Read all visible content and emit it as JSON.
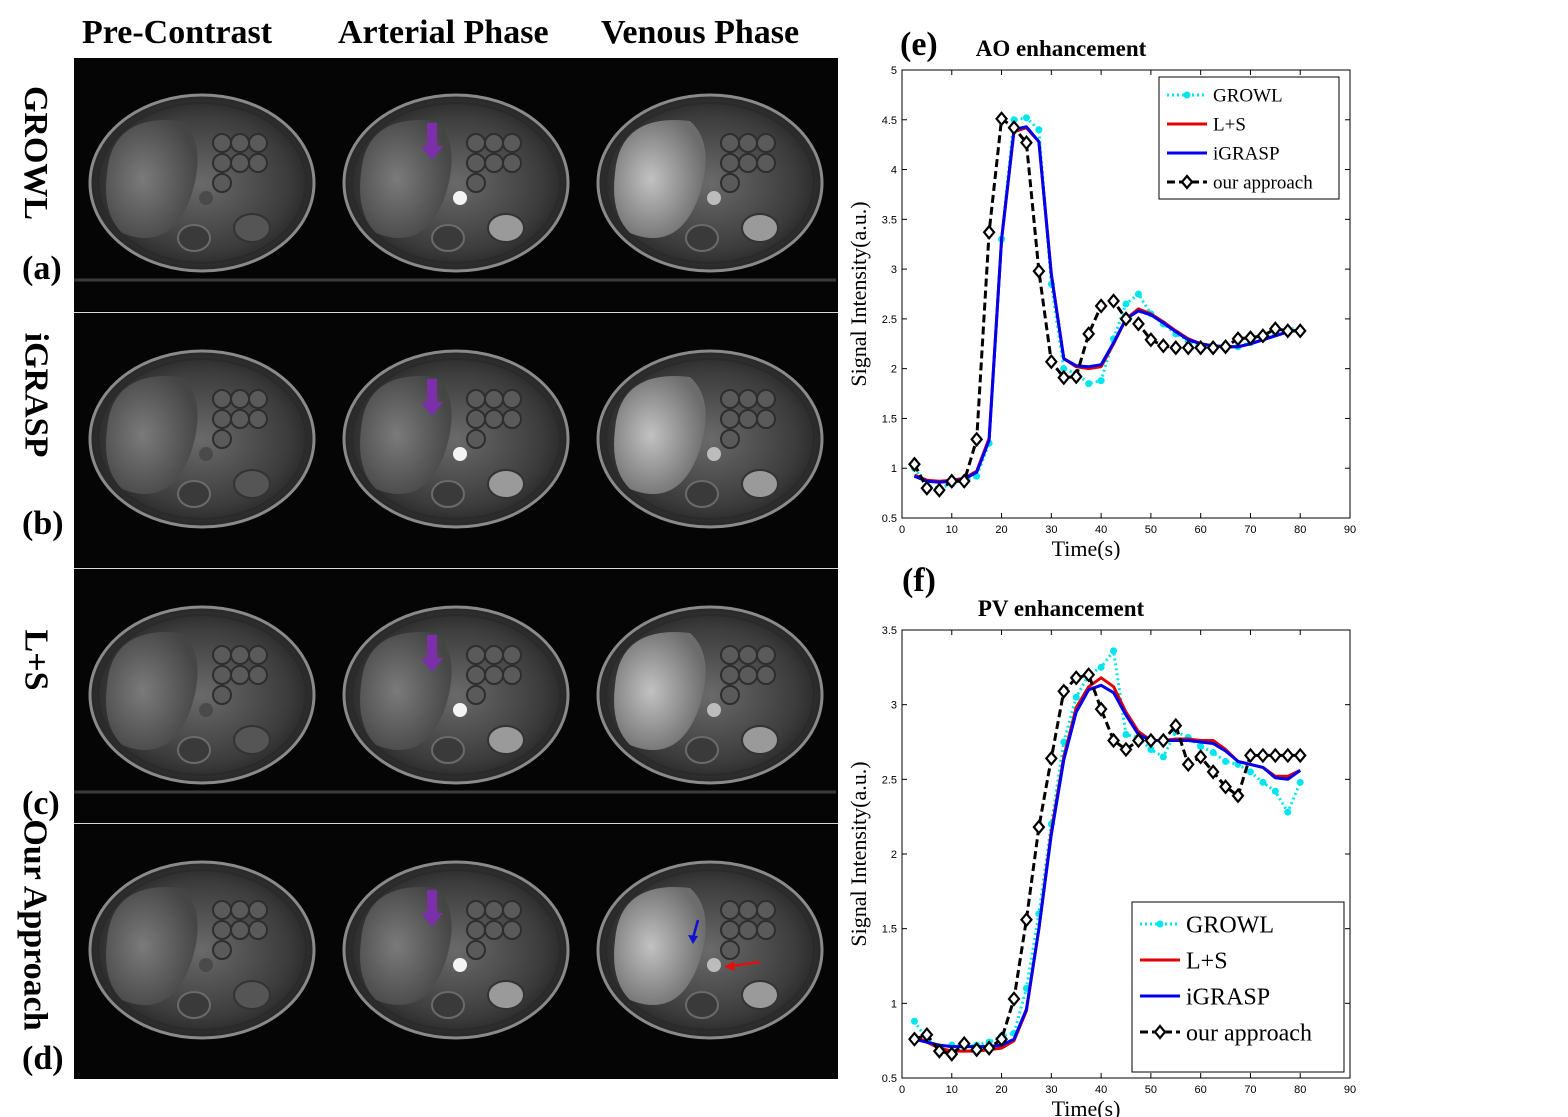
{
  "columns": [
    "Pre-Contrast",
    "Arterial Phase",
    "Venous Phase"
  ],
  "rows": [
    {
      "method": "GROWL",
      "letter": "(a)"
    },
    {
      "method": "iGRASP",
      "letter": "(b)"
    },
    {
      "method": "L+S",
      "letter": "(c)"
    },
    {
      "method": "Our Approach",
      "letter": "(d)"
    }
  ],
  "colors": {
    "growl": "#00e5ee",
    "ls": "#e00000",
    "igrasp": "#0000ee",
    "ours": "#000000",
    "arrow_purple": "#7b2fa8",
    "arrow_blue": "#1010d0",
    "arrow_red": "#e01010"
  },
  "chart_data": [
    {
      "panel_letter": "(e)",
      "type": "line",
      "title": "AO enhancement",
      "xlabel": "Time(s)",
      "ylabel": "Signal Intensity(a.u.)",
      "xlim": [
        0,
        90
      ],
      "ylim": [
        0.5,
        5
      ],
      "xticks": [
        0,
        10,
        20,
        30,
        40,
        50,
        60,
        70,
        80,
        90
      ],
      "yticks": [
        0.5,
        1,
        1.5,
        2,
        2.5,
        3,
        3.5,
        4,
        4.5,
        5
      ],
      "legend_position": "top-right",
      "series": [
        {
          "name": "GROWL",
          "color": "#00e5ee",
          "style": "dotted-star",
          "x": [
            2.5,
            5,
            7.5,
            10,
            12.5,
            15,
            17.5,
            20,
            22.5,
            25,
            27.5,
            30,
            32.5,
            35,
            37.5,
            40,
            42.5,
            45,
            47.5,
            50,
            52.5,
            55,
            57.5,
            60,
            62.5,
            65,
            67.5,
            70,
            72.5,
            75,
            77.5,
            80
          ],
          "y": [
            1.0,
            0.82,
            0.8,
            0.84,
            0.88,
            0.92,
            1.25,
            3.3,
            4.5,
            4.52,
            4.4,
            2.85,
            2.0,
            1.95,
            1.85,
            1.88,
            2.3,
            2.65,
            2.75,
            2.55,
            2.45,
            2.35,
            2.28,
            2.22,
            2.2,
            2.22,
            2.22,
            2.26,
            2.3,
            2.35,
            2.4,
            2.4
          ]
        },
        {
          "name": "L+S",
          "color": "#e00000",
          "style": "solid",
          "x": [
            2.5,
            5,
            7.5,
            10,
            12.5,
            15,
            17.5,
            20,
            22.5,
            25,
            27.5,
            30,
            32.5,
            35,
            37.5,
            40,
            42.5,
            45,
            47.5,
            50,
            52.5,
            55,
            57.5,
            60,
            62.5,
            65,
            67.5,
            70,
            72.5,
            75,
            77.5,
            80
          ],
          "y": [
            0.93,
            0.88,
            0.87,
            0.88,
            0.9,
            0.97,
            1.3,
            3.3,
            4.38,
            4.42,
            4.28,
            2.95,
            2.1,
            2.02,
            2.0,
            2.02,
            2.25,
            2.5,
            2.6,
            2.55,
            2.47,
            2.38,
            2.3,
            2.25,
            2.23,
            2.22,
            2.22,
            2.25,
            2.29,
            2.33,
            2.37,
            2.39
          ]
        },
        {
          "name": "iGRASP",
          "color": "#0000ee",
          "style": "solid",
          "x": [
            2.5,
            5,
            7.5,
            10,
            12.5,
            15,
            17.5,
            20,
            22.5,
            25,
            27.5,
            30,
            32.5,
            35,
            37.5,
            40,
            42.5,
            45,
            47.5,
            50,
            52.5,
            55,
            57.5,
            60,
            62.5,
            65,
            67.5,
            70,
            72.5,
            75,
            77.5,
            80
          ],
          "y": [
            0.92,
            0.87,
            0.86,
            0.87,
            0.89,
            0.96,
            1.28,
            3.3,
            4.4,
            4.43,
            4.28,
            2.95,
            2.1,
            2.03,
            2.02,
            2.04,
            2.26,
            2.5,
            2.58,
            2.54,
            2.46,
            2.37,
            2.29,
            2.25,
            2.23,
            2.22,
            2.22,
            2.25,
            2.29,
            2.33,
            2.37,
            2.39
          ]
        },
        {
          "name": "our approach",
          "color": "#000000",
          "style": "dashed-diamond",
          "x": [
            2.5,
            5,
            7.5,
            10,
            12.5,
            15,
            17.5,
            20,
            22.5,
            25,
            27.5,
            30,
            32.5,
            35,
            37.5,
            40,
            42.5,
            45,
            47.5,
            50,
            52.5,
            55,
            57.5,
            60,
            62.5,
            65,
            67.5,
            70,
            72.5,
            75,
            77.5,
            80
          ],
          "y": [
            1.04,
            0.8,
            0.78,
            0.87,
            0.87,
            1.29,
            3.37,
            4.51,
            4.42,
            4.27,
            2.98,
            2.07,
            1.91,
            1.92,
            2.35,
            2.63,
            2.68,
            2.5,
            2.45,
            2.29,
            2.23,
            2.21,
            2.21,
            2.21,
            2.21,
            2.22,
            2.3,
            2.31,
            2.33,
            2.4,
            2.38,
            2.38
          ]
        }
      ]
    },
    {
      "panel_letter": "(f)",
      "type": "line",
      "title": "PV enhancement",
      "xlabel": "Time(s)",
      "ylabel": "Signal Intensity(a.u.)",
      "xlim": [
        0,
        90
      ],
      "ylim": [
        0.5,
        3.5
      ],
      "xticks": [
        0,
        10,
        20,
        30,
        40,
        50,
        60,
        70,
        80,
        90
      ],
      "yticks": [
        0.5,
        1,
        1.5,
        2,
        2.5,
        3,
        3.5
      ],
      "legend_position": "bottom-right",
      "series": [
        {
          "name": "GROWL",
          "color": "#00e5ee",
          "style": "dotted-star",
          "x": [
            2.5,
            5,
            7.5,
            10,
            12.5,
            15,
            17.5,
            20,
            22.5,
            25,
            27.5,
            30,
            32.5,
            35,
            37.5,
            40,
            42.5,
            45,
            47.5,
            50,
            52.5,
            55,
            57.5,
            60,
            62.5,
            65,
            67.5,
            70,
            72.5,
            75,
            77.5,
            80
          ],
          "y": [
            0.88,
            0.76,
            0.7,
            0.72,
            0.71,
            0.72,
            0.74,
            0.78,
            0.8,
            1.1,
            1.6,
            2.2,
            2.75,
            3.05,
            3.2,
            3.25,
            3.36,
            2.8,
            2.78,
            2.7,
            2.65,
            2.82,
            2.78,
            2.72,
            2.68,
            2.62,
            2.6,
            2.55,
            2.48,
            2.42,
            2.28,
            2.48
          ]
        },
        {
          "name": "L+S",
          "color": "#e00000",
          "style": "solid",
          "x": [
            2.5,
            5,
            7.5,
            10,
            12.5,
            15,
            17.5,
            20,
            22.5,
            25,
            27.5,
            30,
            32.5,
            35,
            37.5,
            40,
            42.5,
            45,
            47.5,
            50,
            52.5,
            55,
            57.5,
            60,
            62.5,
            65,
            67.5,
            70,
            72.5,
            75,
            77.5,
            80
          ],
          "y": [
            0.78,
            0.74,
            0.7,
            0.68,
            0.68,
            0.68,
            0.69,
            0.7,
            0.75,
            0.95,
            1.5,
            2.15,
            2.65,
            2.98,
            3.12,
            3.18,
            3.12,
            2.95,
            2.82,
            2.76,
            2.76,
            2.77,
            2.77,
            2.76,
            2.76,
            2.7,
            2.62,
            2.6,
            2.58,
            2.52,
            2.52,
            2.56
          ]
        },
        {
          "name": "iGRASP",
          "color": "#0000ee",
          "style": "solid",
          "x": [
            2.5,
            5,
            7.5,
            10,
            12.5,
            15,
            17.5,
            20,
            22.5,
            25,
            27.5,
            30,
            32.5,
            35,
            37.5,
            40,
            42.5,
            45,
            47.5,
            50,
            52.5,
            55,
            57.5,
            60,
            62.5,
            65,
            67.5,
            70,
            72.5,
            75,
            77.5,
            80
          ],
          "y": [
            0.76,
            0.74,
            0.72,
            0.71,
            0.71,
            0.71,
            0.71,
            0.72,
            0.76,
            0.96,
            1.5,
            2.13,
            2.63,
            2.95,
            3.1,
            3.13,
            3.08,
            2.93,
            2.8,
            2.76,
            2.76,
            2.76,
            2.76,
            2.75,
            2.74,
            2.69,
            2.62,
            2.6,
            2.58,
            2.51,
            2.5,
            2.56
          ]
        },
        {
          "name": "our approach",
          "color": "#000000",
          "style": "dashed-diamond",
          "x": [
            2.5,
            5,
            7.5,
            10,
            12.5,
            15,
            17.5,
            20,
            22.5,
            25,
            27.5,
            30,
            32.5,
            35,
            37.5,
            40,
            42.5,
            45,
            47.5,
            50,
            52.5,
            55,
            57.5,
            60,
            62.5,
            65,
            67.5,
            70,
            72.5,
            75,
            77.5,
            80
          ],
          "y": [
            0.76,
            0.79,
            0.68,
            0.66,
            0.73,
            0.69,
            0.7,
            0.76,
            1.03,
            1.56,
            2.18,
            2.64,
            3.09,
            3.18,
            3.2,
            2.97,
            2.76,
            2.7,
            2.76,
            2.76,
            2.76,
            2.86,
            2.6,
            2.65,
            2.55,
            2.45,
            2.39,
            2.66,
            2.66,
            2.66,
            2.66,
            2.66
          ]
        }
      ]
    }
  ]
}
